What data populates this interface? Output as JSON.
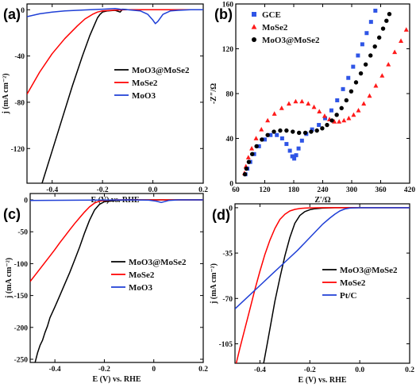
{
  "chart_data": [
    {
      "id": "a",
      "type": "line",
      "panel_label": "(a)",
      "xlabel": "E (V) vs. RHE",
      "ylabel": "j (mA cm⁻²)",
      "xlim": [
        -0.5,
        0.2
      ],
      "ylim": [
        -150,
        5
      ],
      "xticks": [
        -0.4,
        -0.2,
        0.0,
        0.2
      ],
      "xtick_labels": [
        "-0.4",
        "-0.2",
        "0.0",
        "0.2"
      ],
      "yticks": [
        0,
        -40,
        -80,
        -120
      ],
      "ytick_labels": [
        "0",
        "-40",
        "-80",
        "-120"
      ],
      "legend_position": "center-right",
      "series": [
        {
          "name": "MoO3@MoSe2",
          "color": "#000000",
          "x": [
            -0.44,
            -0.4,
            -0.36,
            -0.32,
            -0.28,
            -0.25,
            -0.23,
            -0.22,
            -0.21,
            -0.2,
            -0.18,
            -0.15,
            -0.13,
            -0.12,
            -0.1,
            0.0,
            0.1,
            0.2
          ],
          "y": [
            -150,
            -122,
            -94,
            -66,
            -40,
            -22,
            -12,
            -7,
            -4,
            -2,
            -1,
            -0.5,
            -2,
            0.5,
            0,
            0,
            0,
            0
          ]
        },
        {
          "name": "MoSe2",
          "color": "#ff0000",
          "x": [
            -0.5,
            -0.45,
            -0.4,
            -0.35,
            -0.3,
            -0.27,
            -0.24,
            -0.22,
            -0.2,
            -0.15,
            -0.1,
            0.0,
            0.1,
            0.2
          ],
          "y": [
            -73,
            -54,
            -38,
            -25,
            -14,
            -8,
            -4,
            -2,
            -1,
            -0.3,
            0,
            0,
            0,
            0
          ]
        },
        {
          "name": "MoO3",
          "color": "#1f3fd6",
          "x": [
            -0.5,
            -0.45,
            -0.4,
            -0.35,
            -0.3,
            -0.25,
            -0.2,
            -0.15,
            -0.13,
            -0.1,
            -0.05,
            -0.02,
            0.0,
            0.01,
            0.02,
            0.04,
            0.07,
            0.1,
            0.15,
            0.2
          ],
          "y": [
            -6,
            -3.5,
            -2,
            -1,
            -0.5,
            0,
            0.5,
            1,
            0.5,
            0,
            -1,
            -4,
            -9,
            -12,
            -10,
            -4,
            -1,
            -0.5,
            0,
            0
          ]
        }
      ]
    },
    {
      "id": "b",
      "type": "scatter",
      "panel_label": "(b)",
      "xlabel": "Z′/Ω",
      "ylabel": "-Z″/Ω",
      "xlim": [
        60,
        420
      ],
      "ylim": [
        0,
        160
      ],
      "xticks": [
        60,
        120,
        180,
        240,
        300,
        360,
        420
      ],
      "xtick_labels": [
        "60",
        "120",
        "180",
        "240",
        "300",
        "360",
        "420"
      ],
      "yticks": [
        0,
        40,
        80,
        120,
        160
      ],
      "ytick_labels": [
        "0",
        "40",
        "80",
        "120",
        "160"
      ],
      "legend_position": "top-left",
      "series": [
        {
          "name": "GCE",
          "color": "#2f55e6",
          "marker": "square",
          "x": [
            80,
            84,
            90,
            98,
            108,
            120,
            132,
            145,
            156,
            165,
            172,
            177,
            181,
            185,
            190,
            197,
            206,
            218,
            232,
            245,
            258,
            270,
            282,
            293,
            303,
            313,
            322,
            331,
            340,
            349,
            357
          ],
          "y": [
            8,
            13,
            19,
            26,
            33,
            39,
            43,
            43,
            40,
            35,
            29,
            24,
            22,
            25,
            31,
            38,
            44,
            48,
            52,
            58,
            65,
            74,
            84,
            94,
            104,
            114,
            124,
            134,
            144,
            154,
            163
          ]
        },
        {
          "name": "MoSe2",
          "color": "#ff1a1a",
          "marker": "triangle",
          "x": [
            78,
            81,
            86,
            93,
            102,
            113,
            126,
            140,
            155,
            170,
            184,
            197,
            210,
            222,
            233,
            244,
            254,
            264,
            274,
            284,
            294,
            304,
            314,
            325,
            337,
            350,
            363,
            376,
            389,
            402,
            413
          ],
          "y": [
            9,
            15,
            23,
            31,
            40,
            48,
            56,
            62,
            67,
            71,
            73,
            73,
            71,
            68,
            64,
            60,
            57,
            55,
            55,
            56,
            58,
            61,
            65,
            71,
            78,
            87,
            96,
            106,
            117,
            127,
            137
          ]
        },
        {
          "name": "MoO3@MoSe2",
          "color": "#000000",
          "marker": "circle",
          "x": [
            79,
            82,
            87,
            94,
            103,
            114,
            126,
            139,
            152,
            165,
            178,
            191,
            204,
            216,
            228,
            239,
            249,
            259,
            269,
            279,
            289,
            299,
            309,
            319,
            329,
            339,
            348,
            357,
            365,
            372,
            378
          ],
          "y": [
            8,
            13,
            19,
            26,
            33,
            39,
            43,
            46,
            47,
            47,
            46,
            45,
            45,
            46,
            47,
            49,
            52,
            56,
            61,
            67,
            74,
            82,
            90,
            98,
            106,
            114,
            122,
            130,
            138,
            145,
            151
          ]
        }
      ]
    },
    {
      "id": "c",
      "type": "line",
      "panel_label": "(c)",
      "xlabel": "E (V) vs. RHE",
      "ylabel": "j (mA cm⁻²)",
      "xlim": [
        -0.5,
        0.2
      ],
      "ylim": [
        -255,
        10
      ],
      "xticks": [
        -0.4,
        -0.2,
        0.0,
        0.2
      ],
      "xtick_labels": [
        "-0.4",
        "-0.2",
        "0",
        "0.2"
      ],
      "yticks": [
        0,
        -50,
        -100,
        -150,
        -200,
        -250
      ],
      "ytick_labels": [
        "0",
        "-50",
        "-100",
        "-150",
        "-200",
        "-250"
      ],
      "legend_position": "center-right",
      "series": [
        {
          "name": "MoO3@MoSe2",
          "color": "#000000",
          "x": [
            -0.48,
            -0.47,
            -0.46,
            -0.45,
            -0.44,
            -0.43,
            -0.42,
            -0.4,
            -0.38,
            -0.36,
            -0.34,
            -0.32,
            -0.3,
            -0.28,
            -0.26,
            -0.24,
            -0.22,
            -0.2,
            -0.15,
            -0.1,
            0.0,
            0.1,
            0.2
          ],
          "y": [
            -255,
            -240,
            -228,
            -220,
            -208,
            -198,
            -185,
            -168,
            -150,
            -132,
            -114,
            -94,
            -74,
            -52,
            -32,
            -16,
            -7,
            -3,
            -1,
            0,
            0,
            0,
            0
          ]
        },
        {
          "name": "MoSe2",
          "color": "#ff0000",
          "x": [
            -0.5,
            -0.48,
            -0.46,
            -0.44,
            -0.42,
            -0.4,
            -0.38,
            -0.36,
            -0.34,
            -0.32,
            -0.3,
            -0.28,
            -0.26,
            -0.24,
            -0.22,
            -0.2,
            -0.15,
            -0.1,
            0.0,
            0.1,
            0.2
          ],
          "y": [
            -128,
            -118,
            -108,
            -98,
            -88,
            -78,
            -67,
            -57,
            -47,
            -37,
            -28,
            -19,
            -11,
            -5,
            -2,
            -1,
            0,
            0,
            0,
            0,
            0
          ]
        },
        {
          "name": "MoO3",
          "color": "#1f3fd6",
          "x": [
            -0.5,
            -0.3,
            -0.1,
            -0.02,
            0.01,
            0.03,
            0.06,
            0.1,
            0.2
          ],
          "y": [
            -1,
            -0.5,
            0,
            -0.5,
            -2,
            -4,
            -1,
            0,
            0
          ]
        }
      ]
    },
    {
      "id": "d",
      "type": "line",
      "panel_label": "(d)",
      "xlabel": "E (V) vs. RHE",
      "ylabel": "j (mA cm⁻²)",
      "xlim": [
        -0.5,
        0.2
      ],
      "ylim": [
        -120,
        3
      ],
      "xticks": [
        -0.4,
        -0.2,
        0.0,
        0.2
      ],
      "xtick_labels": [
        "-0.4",
        "-0.2",
        "0.0",
        "0.2"
      ],
      "yticks": [
        0,
        -35,
        -70,
        -105
      ],
      "ytick_labels": [
        "0",
        "-35",
        "-70",
        "-105"
      ],
      "legend_position": "center-right",
      "series": [
        {
          "name": "MoO3@MoSe2",
          "color": "#000000",
          "x": [
            -0.385,
            -0.37,
            -0.355,
            -0.34,
            -0.32,
            -0.3,
            -0.28,
            -0.26,
            -0.24,
            -0.22,
            -0.2,
            -0.18,
            -0.15,
            -0.1,
            0.0,
            0.1,
            0.2
          ],
          "y": [
            -120,
            -104,
            -88,
            -72,
            -54,
            -37,
            -23,
            -12,
            -6,
            -3,
            -1.5,
            -0.8,
            -0.3,
            0,
            0,
            0,
            0
          ]
        },
        {
          "name": "MoSe2",
          "color": "#ff0000",
          "x": [
            -0.495,
            -0.48,
            -0.46,
            -0.44,
            -0.42,
            -0.4,
            -0.38,
            -0.36,
            -0.34,
            -0.32,
            -0.3,
            -0.28,
            -0.26,
            -0.24,
            -0.22,
            -0.2,
            -0.15,
            -0.1,
            0.0,
            0.1,
            0.2
          ],
          "y": [
            -120,
            -108,
            -93,
            -78,
            -63,
            -49,
            -36,
            -25,
            -16,
            -9,
            -5,
            -2.5,
            -1.3,
            -0.6,
            -0.3,
            -0.1,
            0,
            0,
            0,
            0,
            0
          ]
        },
        {
          "name": "Pt/C",
          "color": "#1f3fd6",
          "x": [
            -0.5,
            -0.45,
            -0.4,
            -0.35,
            -0.3,
            -0.25,
            -0.2,
            -0.15,
            -0.12,
            -0.1,
            -0.08,
            -0.06,
            -0.04,
            0.0,
            0.1,
            0.2
          ],
          "y": [
            -78,
            -69,
            -60,
            -51,
            -42,
            -33,
            -23,
            -13,
            -8,
            -5,
            -2.5,
            -1,
            -0.3,
            0,
            0,
            0
          ]
        }
      ]
    }
  ]
}
